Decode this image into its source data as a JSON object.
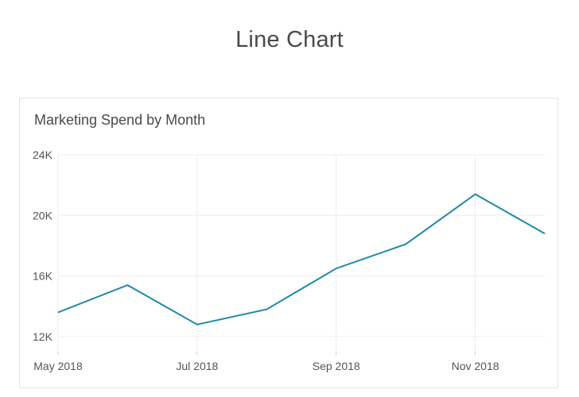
{
  "page": {
    "title": "Line Chart"
  },
  "chart_data": {
    "type": "line",
    "title": "Marketing Spend by Month",
    "xlabel": "",
    "ylabel": "",
    "x": [
      "2018-05",
      "2018-06",
      "2018-07",
      "2018-08",
      "2018-09",
      "2018-10",
      "2018-11",
      "2018-12"
    ],
    "x_tick_labels": [
      {
        "x": "2018-05",
        "label": "May 2018"
      },
      {
        "x": "2018-07",
        "label": "Jul 2018"
      },
      {
        "x": "2018-09",
        "label": "Sep 2018"
      },
      {
        "x": "2018-11",
        "label": "Nov 2018"
      }
    ],
    "y_ticks": [
      12000,
      16000,
      20000,
      24000
    ],
    "y_tick_labels": [
      "12K",
      "16K",
      "20K",
      "24K"
    ],
    "ylim": [
      11000,
      24000
    ],
    "series": [
      {
        "values": [
          13600,
          15400,
          12800,
          13800,
          16500,
          18100,
          21400,
          18800
        ]
      }
    ],
    "line_color": "#2189a6",
    "grid": true,
    "legend": "none"
  }
}
